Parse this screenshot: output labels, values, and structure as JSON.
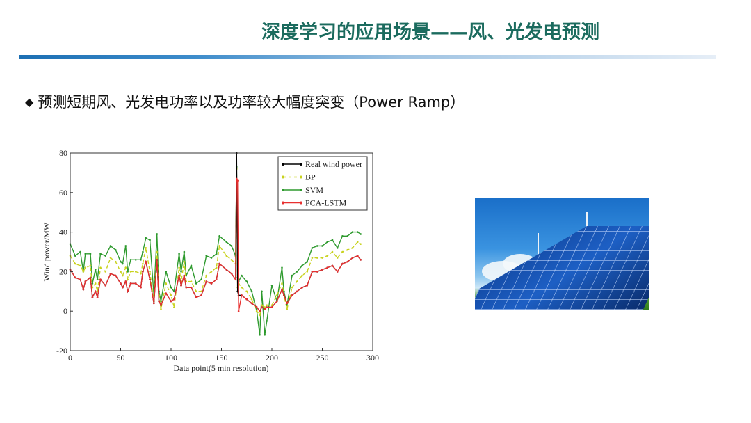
{
  "slide": {
    "title": "深度学习的应用场景——风、光发电预测",
    "bullet_icon": "diamond-bullet-icon",
    "bullet_symbol": "◆",
    "bullet_text": "预测短期风、光发电功率以及功率较大幅度突变（Power Ramp）",
    "accent_color": "#1b6b5e",
    "rule_color": "#1c6fb3",
    "photo": "solar-panels-and-wind-turbines-image"
  },
  "chart_data": {
    "type": "line",
    "title": "",
    "xlabel": "Data point(5 min resolution)",
    "ylabel": "Wind power/MW",
    "xlim": [
      0,
      300
    ],
    "ylim": [
      -20,
      80
    ],
    "xticks": [
      "0",
      "50",
      "100",
      "150",
      "200",
      "250",
      "300"
    ],
    "yticks": [
      "-20",
      "0",
      "20",
      "40",
      "60",
      "80"
    ],
    "grid": false,
    "legend_position": "top-right",
    "x": [
      0,
      5,
      10,
      13,
      15,
      20,
      22,
      25,
      27,
      30,
      35,
      40,
      45,
      50,
      52,
      55,
      57,
      60,
      65,
      70,
      72,
      75,
      79,
      83,
      86,
      88,
      90,
      95,
      100,
      103,
      108,
      110,
      113,
      115,
      120,
      125,
      130,
      135,
      140,
      145,
      148,
      155,
      160,
      164,
      165,
      166,
      167,
      170,
      175,
      180,
      185,
      188,
      190,
      193,
      195,
      200,
      205,
      210,
      212,
      215,
      220,
      225,
      230,
      235,
      240,
      245,
      250,
      255,
      260,
      265,
      270,
      275,
      280,
      285,
      288
    ],
    "series": [
      {
        "name": "Real wind power",
        "color": "#000000",
        "marker": "star",
        "values": [
          21,
          17,
          16,
          11,
          15,
          17,
          7,
          10,
          7,
          16,
          13,
          19,
          18,
          14,
          12,
          15,
          10,
          14,
          14,
          12,
          20,
          25,
          16,
          4,
          26,
          5,
          3,
          9,
          5,
          6,
          18,
          13,
          18,
          12,
          12,
          7,
          8,
          15,
          14,
          16,
          24,
          21,
          19,
          16,
          80,
          10,
          8,
          8,
          6,
          4,
          2,
          0,
          2,
          1,
          2,
          2,
          5,
          11,
          8,
          4,
          8,
          10,
          12,
          13,
          20,
          20,
          21,
          22,
          23,
          20,
          24,
          25,
          27,
          28,
          26
        ]
      },
      {
        "name": "BP",
        "color": "#c8d21e",
        "marker": "dash",
        "values": [
          28,
          24,
          23,
          20,
          22,
          23,
          12,
          14,
          10,
          22,
          20,
          27,
          25,
          20,
          18,
          22,
          16,
          20,
          20,
          19,
          24,
          32,
          20,
          5,
          30,
          8,
          1,
          14,
          8,
          2,
          22,
          15,
          25,
          15,
          15,
          10,
          10,
          18,
          20,
          22,
          33,
          28,
          26,
          24,
          72,
          12,
          14,
          12,
          10,
          6,
          0,
          -2,
          3,
          2,
          3,
          3,
          8,
          14,
          8,
          1,
          12,
          15,
          18,
          20,
          27,
          27,
          27,
          28,
          30,
          27,
          30,
          31,
          32,
          35,
          34
        ]
      },
      {
        "name": "SVM",
        "color": "#2e9a2e",
        "marker": "plus",
        "values": [
          34,
          28,
          30,
          20,
          29,
          29,
          14,
          21,
          16,
          29,
          28,
          33,
          31,
          25,
          24,
          33,
          20,
          26,
          26,
          26,
          30,
          37,
          36,
          8,
          39,
          10,
          5,
          20,
          12,
          10,
          29,
          20,
          30,
          18,
          23,
          14,
          16,
          28,
          27,
          29,
          38,
          35,
          33,
          28,
          73,
          17,
          15,
          18,
          15,
          10,
          0,
          -12,
          10,
          -12,
          -5,
          13,
          5,
          22,
          10,
          3,
          18,
          20,
          23,
          25,
          32,
          33,
          33,
          35,
          36,
          32,
          38,
          38,
          40,
          40,
          39
        ]
      },
      {
        "name": "PCA-LSTM",
        "color": "#e83030",
        "marker": "x",
        "values": [
          21,
          17,
          16,
          11,
          15,
          17,
          7,
          10,
          7,
          16,
          13,
          19,
          18,
          14,
          12,
          15,
          10,
          14,
          14,
          12,
          20,
          25,
          16,
          4,
          26,
          5,
          3,
          9,
          5,
          6,
          18,
          13,
          18,
          12,
          12,
          7,
          8,
          15,
          14,
          16,
          24,
          21,
          19,
          16,
          67,
          66,
          0,
          8,
          6,
          4,
          2,
          0,
          2,
          1,
          2,
          2,
          5,
          11,
          8,
          4,
          8,
          10,
          12,
          13,
          20,
          20,
          21,
          22,
          23,
          20,
          24,
          25,
          27,
          28,
          26
        ]
      }
    ]
  }
}
